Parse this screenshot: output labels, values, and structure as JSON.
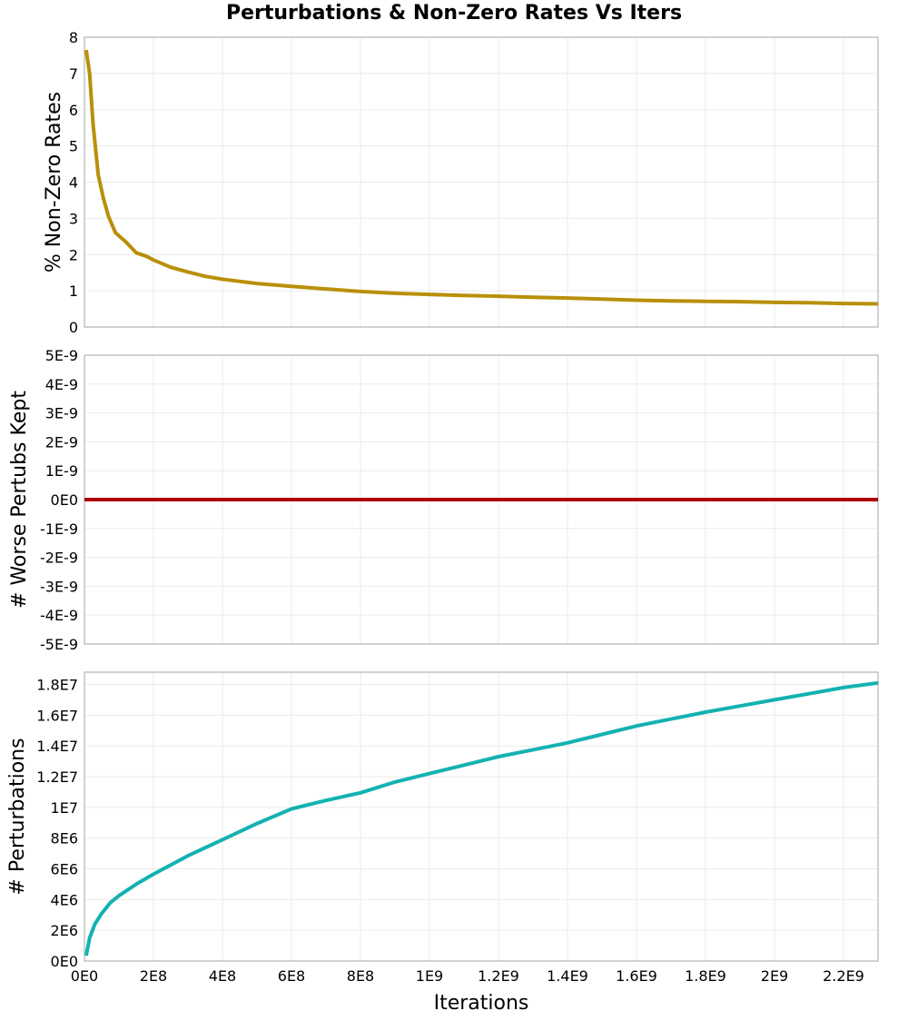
{
  "chart_data": {
    "title": "Perturbations & Non-Zero Rates Vs Iters",
    "type": "line",
    "xlabel": "Iterations",
    "xlim": [
      0,
      2300000000
    ],
    "x_ticks": [
      0,
      200000000,
      400000000,
      600000000,
      800000000,
      1000000000,
      1200000000,
      1400000000,
      1600000000,
      1800000000,
      2000000000,
      2200000000
    ],
    "x_tick_labels": [
      "0E0",
      "2E8",
      "4E8",
      "6E8",
      "8E8",
      "1E9",
      "1.2E9",
      "1.4E9",
      "1.6E9",
      "1.8E9",
      "2E9",
      "2.2E9"
    ],
    "grid": true,
    "panels": [
      {
        "name": "non-zero-rates",
        "ylabel": "% Non-Zero Rates",
        "ylim": [
          0,
          8
        ],
        "y_ticks": [
          0,
          1,
          2,
          3,
          4,
          5,
          6,
          7,
          8
        ],
        "y_tick_labels": [
          "0",
          "1",
          "2",
          "3",
          "4",
          "5",
          "6",
          "7",
          "8"
        ],
        "color": "#b8900a",
        "x": [
          5000000,
          15000000,
          25000000,
          40000000,
          55000000,
          70000000,
          90000000,
          120000000,
          150000000,
          180000000,
          200000000,
          250000000,
          300000000,
          350000000,
          400000000,
          500000000,
          600000000,
          700000000,
          800000000,
          900000000,
          1000000000,
          1100000000,
          1200000000,
          1300000000,
          1400000000,
          1500000000,
          1600000000,
          1700000000,
          1800000000,
          1900000000,
          2000000000,
          2100000000,
          2200000000,
          2300000000
        ],
        "y": [
          7.65,
          7.0,
          5.6,
          4.2,
          3.55,
          3.05,
          2.6,
          2.35,
          2.05,
          1.95,
          1.85,
          1.65,
          1.52,
          1.4,
          1.32,
          1.2,
          1.12,
          1.05,
          0.98,
          0.93,
          0.9,
          0.87,
          0.85,
          0.82,
          0.8,
          0.77,
          0.74,
          0.72,
          0.71,
          0.7,
          0.68,
          0.67,
          0.65,
          0.64
        ]
      },
      {
        "name": "worse-perturbs-kept",
        "ylabel": "# Worse Pertubs Kept",
        "ylim": [
          -5e-09,
          5e-09
        ],
        "y_ticks": [
          -5e-09,
          -4e-09,
          -3e-09,
          -2e-09,
          -1e-09,
          0,
          1e-09,
          2e-09,
          3e-09,
          4e-09,
          5e-09
        ],
        "y_tick_labels": [
          "-5E-9",
          "-4E-9",
          "-3E-9",
          "-2E-9",
          "-1E-9",
          "0E0",
          "1E-9",
          "2E-9",
          "3E-9",
          "4E-9",
          "5E-9"
        ],
        "color": "#b00000",
        "x": [
          0,
          2300000000
        ],
        "y": [
          0,
          0
        ]
      },
      {
        "name": "perturbations",
        "ylabel": "# Perturbations",
        "ylim": [
          0,
          18800000
        ],
        "y_ticks": [
          0,
          2000000,
          4000000,
          6000000,
          8000000,
          10000000,
          12000000,
          14000000,
          16000000,
          18000000
        ],
        "y_tick_labels": [
          "0E0",
          "2E6",
          "4E6",
          "6E6",
          "8E6",
          "1E7",
          "1.2E7",
          "1.4E7",
          "1.6E7",
          "1.8E7"
        ],
        "color": "#14b1b1",
        "x": [
          5000000,
          15000000,
          30000000,
          50000000,
          75000000,
          100000000,
          150000000,
          200000000,
          300000000,
          400000000,
          500000000,
          600000000,
          700000000,
          800000000,
          900000000,
          1000000000,
          1100000000,
          1200000000,
          1300000000,
          1400000000,
          1500000000,
          1600000000,
          1700000000,
          1800000000,
          1900000000,
          2000000000,
          2100000000,
          2200000000,
          2300000000
        ],
        "y": [
          350000,
          1500000,
          2400000,
          3100000,
          3800000,
          4250000,
          5000000,
          5650000,
          6850000,
          7900000,
          8950000,
          9900000,
          10450000,
          10950000,
          11650000,
          12200000,
          12750000,
          13300000,
          13750000,
          14200000,
          14750000,
          15300000,
          15750000,
          16200000,
          16600000,
          17000000,
          17400000,
          17800000,
          18100000
        ]
      }
    ]
  }
}
